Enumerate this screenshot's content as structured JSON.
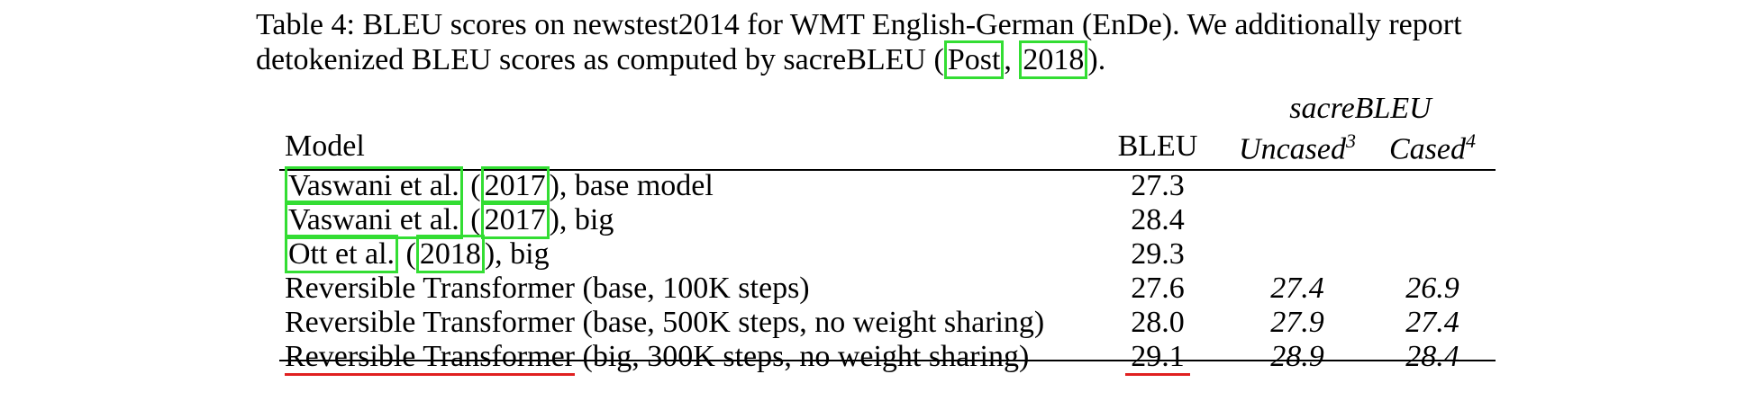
{
  "caption": {
    "line1": "Table 4: BLEU scores on newstest2014 for WMT English-German (EnDe). We additionally report",
    "line2_pre": "detokenized BLEU scores as computed by sacreBLEU (",
    "cite_author": "Post",
    "cite_sep": ", ",
    "cite_year": "2018",
    "line2_post": ")."
  },
  "table": {
    "group_header": "sacreBLEU",
    "headers": {
      "model": "Model",
      "bleu": "BLEU",
      "uncased": "Uncased",
      "uncased_note": "3",
      "cased": "Cased",
      "cased_note": "4"
    },
    "baselines": [
      {
        "author": "Vaswani et al.",
        "open": " (",
        "year": "2017",
        "suffix": "), base model",
        "bleu": "27.3"
      },
      {
        "author": "Vaswani et al.",
        "open": " (",
        "year": "2017",
        "suffix": "), big",
        "bleu": "28.4"
      },
      {
        "author": "Ott et al.",
        "open": " (",
        "year": "2018",
        "suffix": "), big",
        "bleu": "29.3"
      }
    ],
    "ours": [
      {
        "name": "Reversible Transformer",
        "config": " (base, 100K steps)",
        "bleu": "27.6",
        "uncased": "27.4",
        "cased": "26.9"
      },
      {
        "name": "Reversible Transformer",
        "config": " (base, 500K steps, no weight sharing)",
        "bleu": "28.0",
        "uncased": "27.9",
        "cased": "27.4"
      },
      {
        "name": "Reversible Transformer",
        "config": " (big, 300K steps, no weight sharing)",
        "bleu": "29.1",
        "uncased": "28.9",
        "cased": "28.4"
      }
    ]
  },
  "colors": {
    "citation_box": "#33dd33",
    "highlight_underline": "#e02020"
  }
}
